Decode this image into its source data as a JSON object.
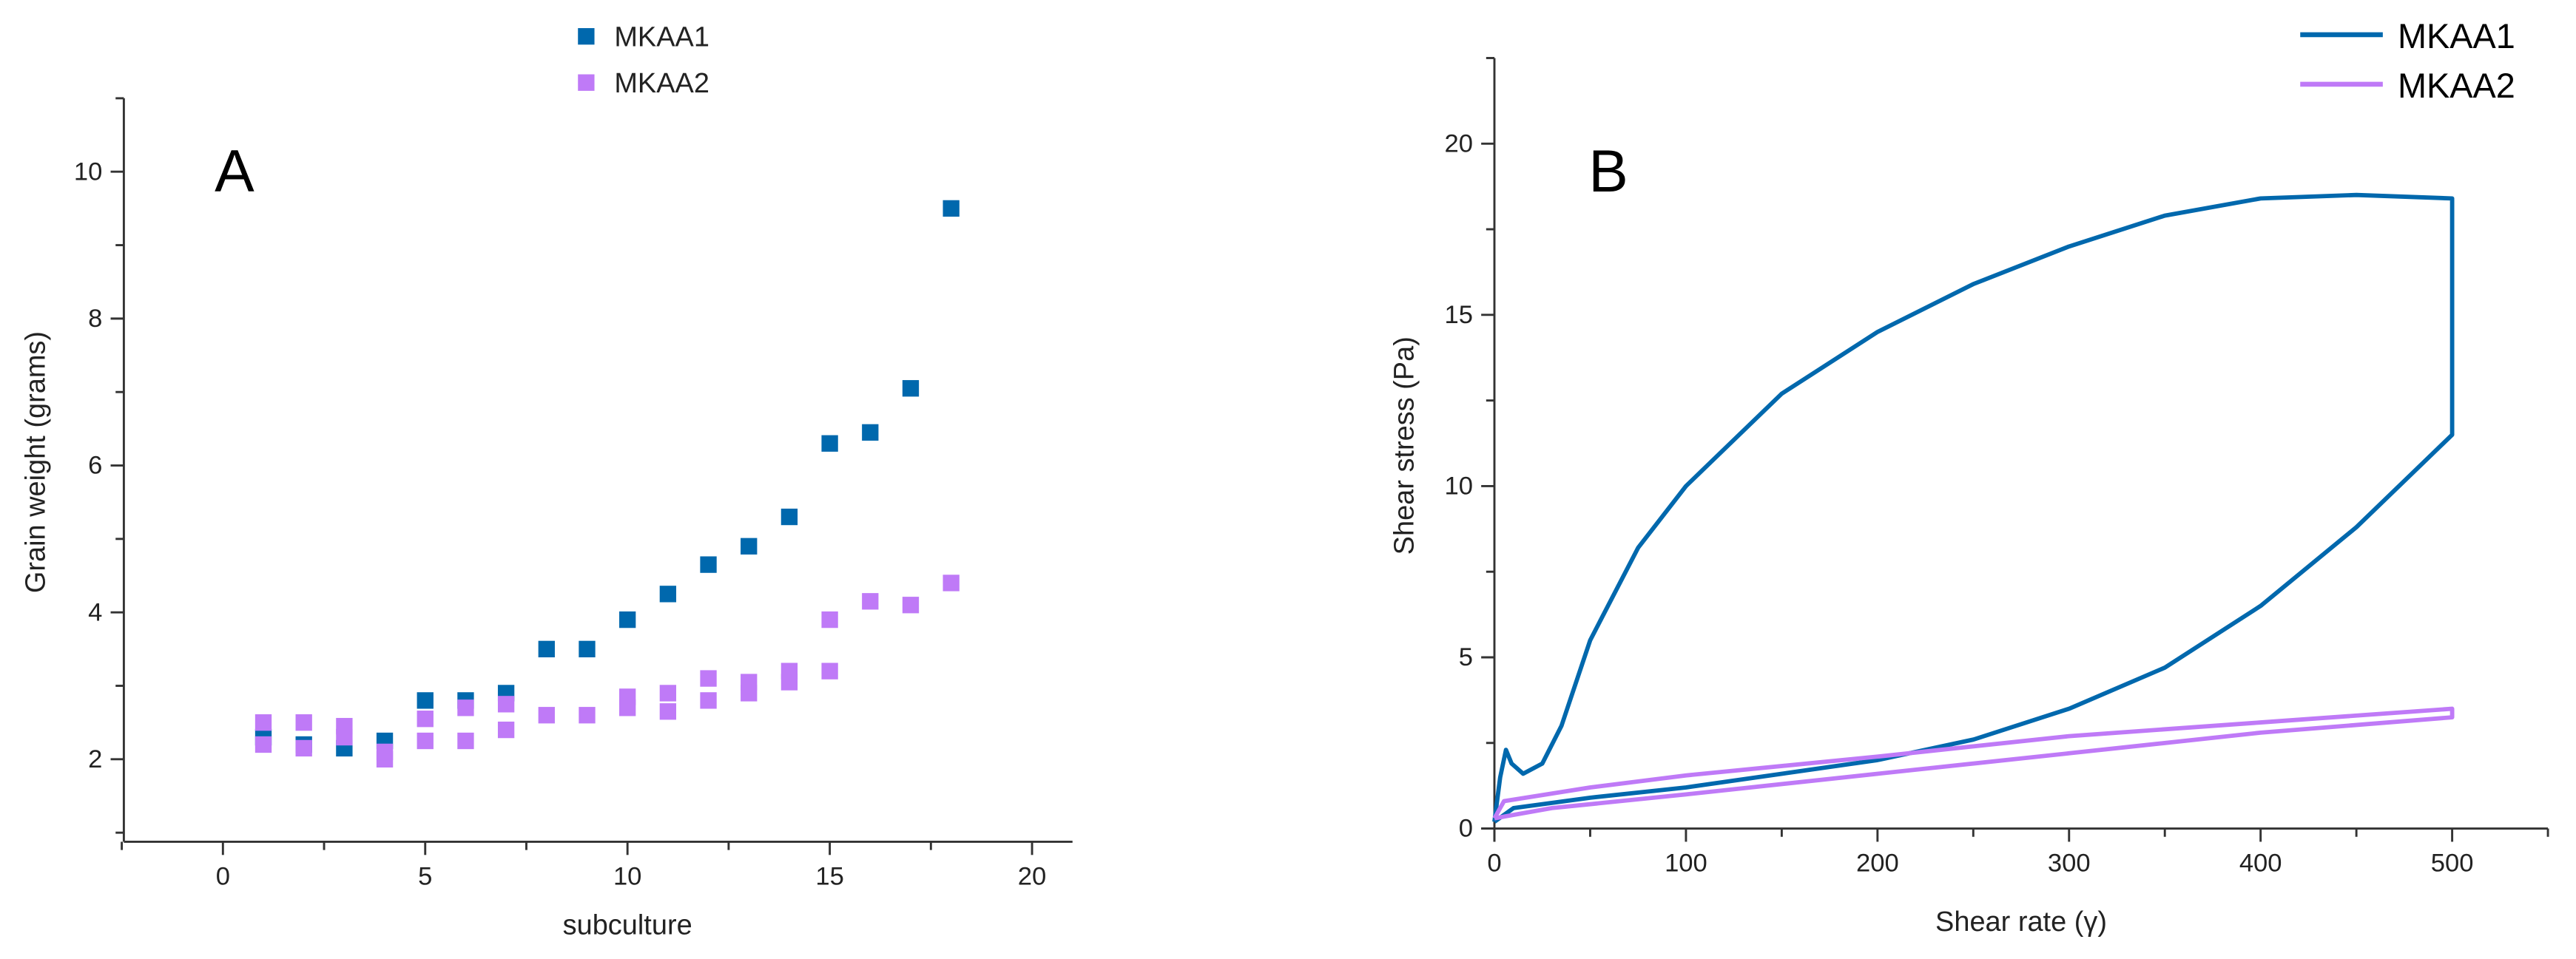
{
  "chart_data": [
    {
      "type": "scatter",
      "panel_label": "A",
      "xlabel": "subculture",
      "ylabel": "Grain weight (grams)",
      "xlim": [
        -2.5,
        21
      ],
      "ylim": [
        1,
        11
      ],
      "x_ticks": [
        "0",
        "5",
        "10",
        "15",
        "20"
      ],
      "y_ticks": [
        "2",
        "4",
        "6",
        "8",
        "10"
      ],
      "legend_position": "top",
      "series": [
        {
          "name": "MKAA1",
          "color": "#0068ad",
          "marker": "square",
          "points": [
            [
              1,
              2.3
            ],
            [
              2,
              2.2
            ],
            [
              3,
              2.15
            ],
            [
              4,
              2.25
            ],
            [
              5,
              2.8
            ],
            [
              6,
              2.8
            ],
            [
              7,
              2.9
            ],
            [
              8,
              3.5
            ],
            [
              9,
              3.5
            ],
            [
              10,
              3.9
            ],
            [
              11,
              4.25
            ],
            [
              12,
              4.65
            ],
            [
              13,
              4.9
            ],
            [
              14,
              5.3
            ],
            [
              15,
              6.3
            ],
            [
              16,
              6.45
            ],
            [
              17,
              7.05
            ],
            [
              18,
              9.5
            ]
          ]
        },
        {
          "name": "MKAA2",
          "color": "#bf7af7",
          "marker": "square",
          "points": [
            [
              1,
              2.5
            ],
            [
              1,
              2.2
            ],
            [
              2,
              2.5
            ],
            [
              2,
              2.15
            ],
            [
              3,
              2.45
            ],
            [
              3,
              2.3
            ],
            [
              4,
              2.0
            ],
            [
              4,
              2.1
            ],
            [
              5,
              2.55
            ],
            [
              5,
              2.25
            ],
            [
              6,
              2.7
            ],
            [
              6,
              2.25
            ],
            [
              7,
              2.75
            ],
            [
              7,
              2.4
            ],
            [
              8,
              2.6
            ],
            [
              9,
              2.6
            ],
            [
              10,
              2.85
            ],
            [
              10,
              2.7
            ],
            [
              11,
              2.9
            ],
            [
              11,
              2.65
            ],
            [
              12,
              3.1
            ],
            [
              12,
              2.8
            ],
            [
              13,
              3.05
            ],
            [
              13,
              2.9
            ],
            [
              14,
              3.2
            ],
            [
              14,
              3.05
            ],
            [
              15,
              3.9
            ],
            [
              15,
              3.2
            ],
            [
              16,
              4.15
            ],
            [
              17,
              4.1
            ],
            [
              18,
              4.4
            ]
          ]
        }
      ]
    },
    {
      "type": "line",
      "panel_label": "B",
      "xlabel": "Shear rate (γ)",
      "ylabel": "Shear stress (Pa)",
      "xlim": [
        0,
        550
      ],
      "ylim": [
        0,
        22.5
      ],
      "x_ticks": [
        "0",
        "100",
        "200",
        "300",
        "400",
        "500"
      ],
      "y_ticks": [
        "0",
        "5",
        "10",
        "15",
        "20"
      ],
      "legend_position": "top-right",
      "series": [
        {
          "name": "MKAA1",
          "color": "#0068ad",
          "points": [
            [
              0,
              0.2
            ],
            [
              3,
              1.5
            ],
            [
              6,
              2.3
            ],
            [
              9,
              1.9
            ],
            [
              15,
              1.6
            ],
            [
              25,
              1.9
            ],
            [
              35,
              3.0
            ],
            [
              50,
              5.5
            ],
            [
              75,
              8.2
            ],
            [
              100,
              10
            ],
            [
              150,
              12.7
            ],
            [
              200,
              14.5
            ],
            [
              250,
              15.9
            ],
            [
              300,
              17
            ],
            [
              350,
              17.9
            ],
            [
              400,
              18.4
            ],
            [
              450,
              18.5
            ],
            [
              500,
              18.4
            ],
            [
              500,
              11.5
            ],
            [
              450,
              8.8
            ],
            [
              400,
              6.5
            ],
            [
              350,
              4.7
            ],
            [
              300,
              3.5
            ],
            [
              250,
              2.6
            ],
            [
              200,
              2.0
            ],
            [
              150,
              1.6
            ],
            [
              100,
              1.2
            ],
            [
              50,
              0.9
            ],
            [
              10,
              0.6
            ],
            [
              0,
              0.2
            ]
          ]
        },
        {
          "name": "MKAA2",
          "color": "#bf7af7",
          "points": [
            [
              0,
              0.3
            ],
            [
              5,
              0.8
            ],
            [
              50,
              1.2
            ],
            [
              100,
              1.55
            ],
            [
              200,
              2.1
            ],
            [
              300,
              2.7
            ],
            [
              400,
              3.1
            ],
            [
              500,
              3.5
            ],
            [
              500,
              3.25
            ],
            [
              400,
              2.8
            ],
            [
              300,
              2.2
            ],
            [
              200,
              1.6
            ],
            [
              100,
              1.0
            ],
            [
              30,
              0.6
            ],
            [
              0,
              0.3
            ]
          ]
        }
      ]
    }
  ]
}
